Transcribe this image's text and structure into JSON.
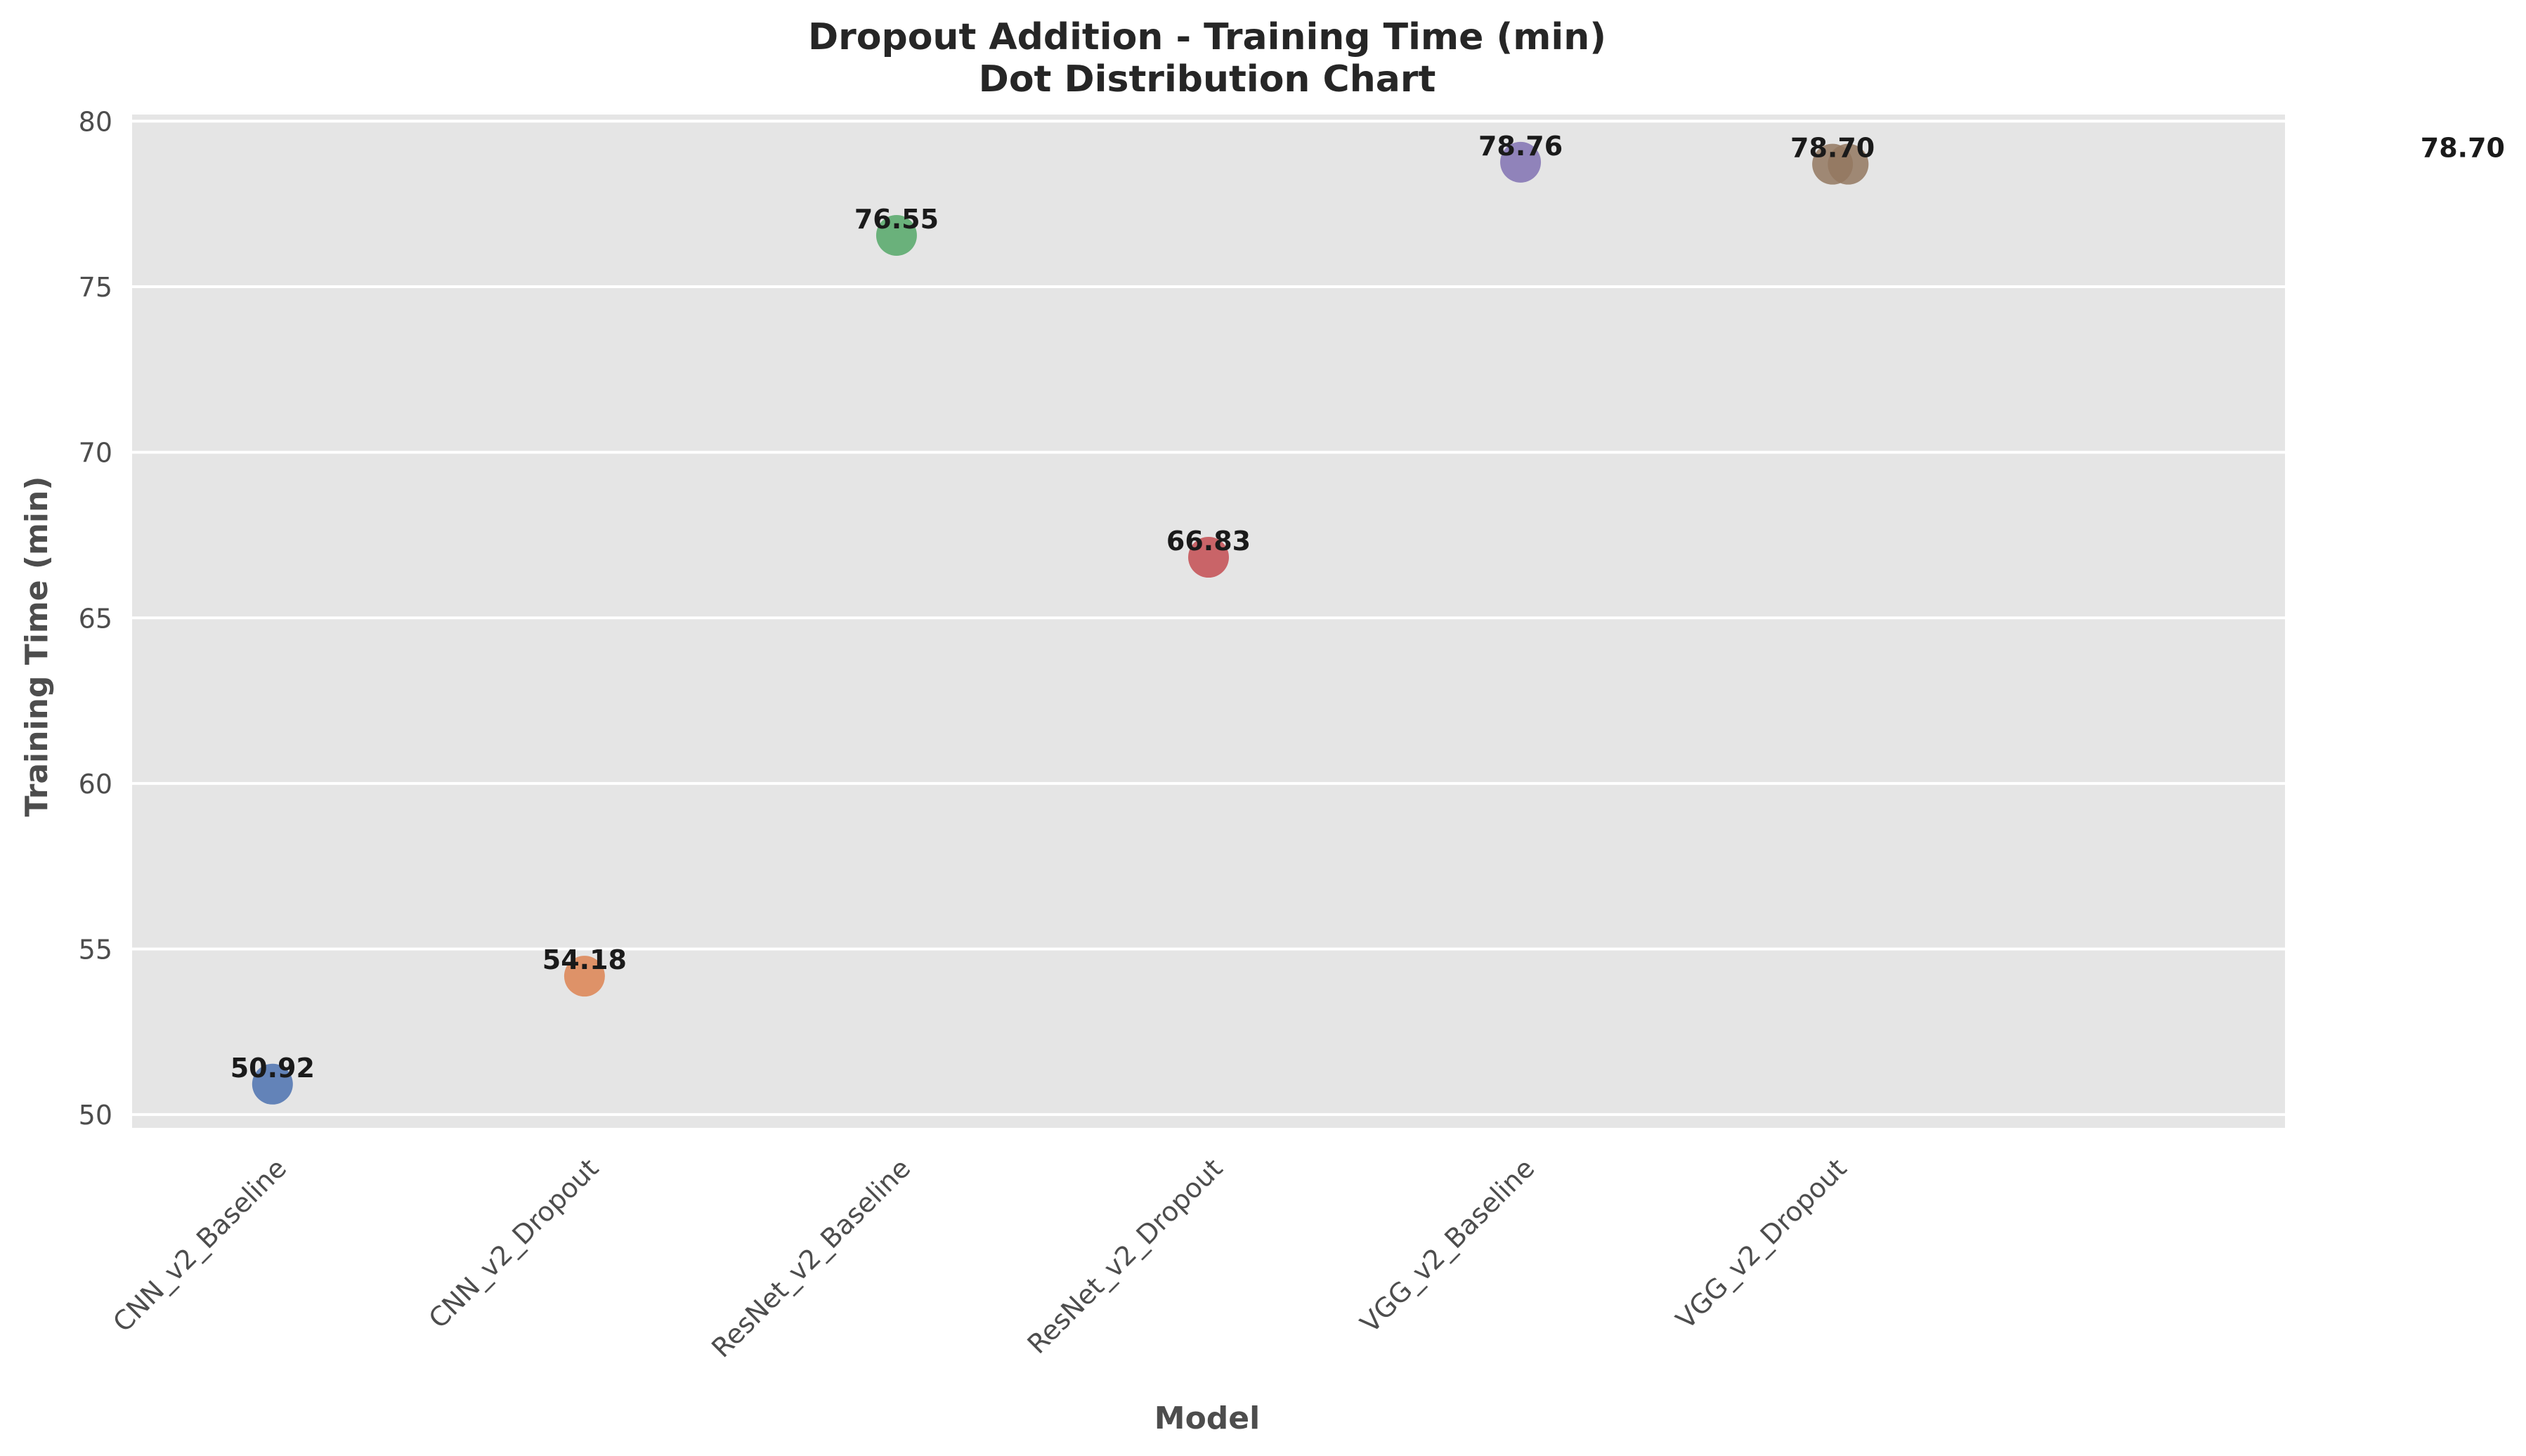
{
  "chart_data": {
    "type": "scatter",
    "title": "Dropout Addition - Training Time (min)",
    "subtitle": "Dot Distribution Chart",
    "xlabel": "Model",
    "ylabel": "Training Time (min)",
    "categories": [
      "CNN_v2_Baseline",
      "CNN_v2_Dropout",
      "ResNet_v2_Baseline",
      "ResNet_v2_Dropout",
      "VGG_v2_Baseline",
      "VGG_v2_Dropout"
    ],
    "ylim": [
      49.6,
      80.2
    ],
    "yticks": [
      50,
      55,
      60,
      65,
      70,
      75,
      80
    ],
    "grid": true,
    "points": [
      {
        "category": "CNN_v2_Baseline",
        "offset": 0,
        "value": 50.92,
        "label": "50.92",
        "color": "#4c72b0"
      },
      {
        "category": "CNN_v2_Dropout",
        "offset": 0,
        "value": 54.18,
        "label": "54.18",
        "color": "#dd8452"
      },
      {
        "category": "ResNet_v2_Baseline",
        "offset": 0,
        "value": 76.55,
        "label": "76.55",
        "color": "#55a868"
      },
      {
        "category": "ResNet_v2_Dropout",
        "offset": 0,
        "value": 66.83,
        "label": "66.83",
        "color": "#c44e52"
      },
      {
        "category": "VGG_v2_Baseline",
        "offset": 0,
        "value": 78.76,
        "label": "78.76",
        "color": "#8172b3"
      },
      {
        "category": "VGG_v2_Dropout",
        "offset": 0,
        "value": 78.7,
        "label": "78.70",
        "color": "#937860"
      },
      {
        "category": "VGG_v2_Dropout",
        "offset": 0.05,
        "value": 78.7,
        "label": "",
        "color": "#937860"
      }
    ],
    "outside_label": {
      "text": "78.70",
      "value": 78.7
    },
    "colors": {
      "plot_background": "#e5e5e5",
      "grid": "#ffffff"
    }
  }
}
